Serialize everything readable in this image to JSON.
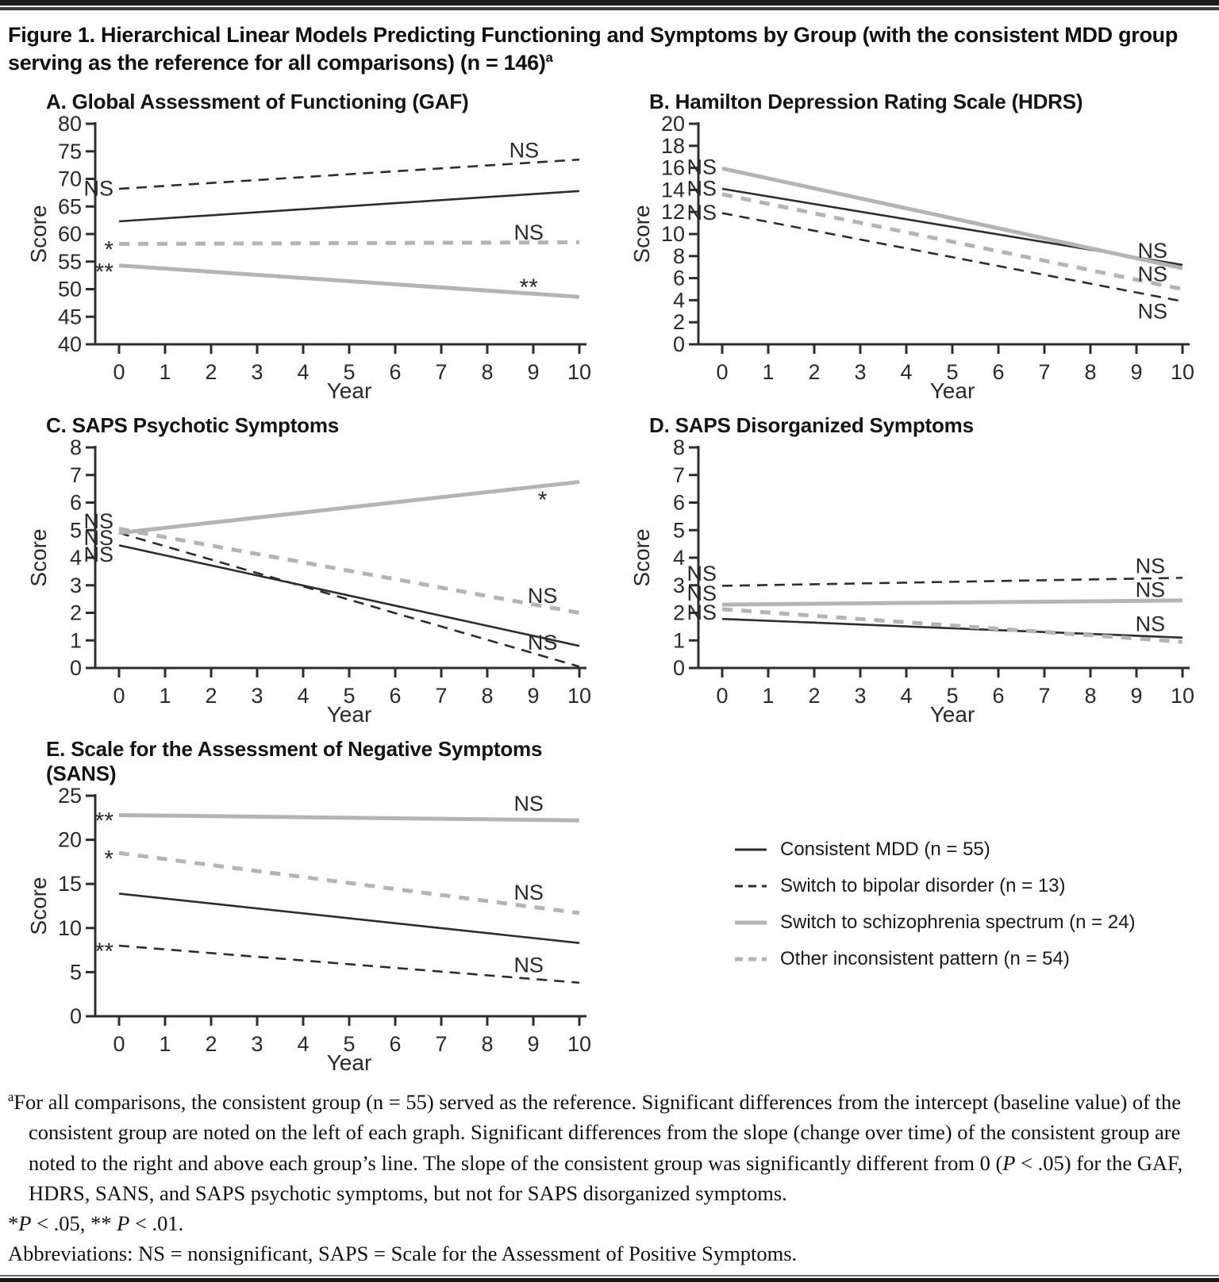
{
  "title": "Figure 1. Hierarchical Linear Models Predicting Functioning and Symptoms by Group (with the consistent MDD group serving as the reference for all comparisons) (n = 146)",
  "title_sup": "a",
  "colors": {
    "black": "#2e2d2c",
    "gray": "#b4b4b4",
    "axis": "#2e2d2c"
  },
  "legend": {
    "position": "right of panel E",
    "items": [
      {
        "label": "Consistent MDD (n = 55)",
        "color": "black",
        "dash": "solid"
      },
      {
        "label": "Switch to bipolar disorder (n = 13)",
        "color": "black",
        "dash": "dashed"
      },
      {
        "label": "Switch to schizophrenia spectrum (n = 24)",
        "color": "gray",
        "dash": "solid"
      },
      {
        "label": "Other inconsistent pattern (n = 54)",
        "color": "gray",
        "dash": "dashed"
      }
    ]
  },
  "chart_data": [
    {
      "id": "gaf",
      "type": "line",
      "title": "A. Global Assessment of Functioning (GAF)",
      "xlabel": "Year",
      "ylabel": "Score",
      "xlim": [
        0,
        10
      ],
      "xticks": [
        0,
        1,
        2,
        3,
        4,
        5,
        6,
        7,
        8,
        9,
        10
      ],
      "ylim": [
        40,
        80
      ],
      "yticks": [
        40,
        45,
        50,
        55,
        60,
        65,
        70,
        75,
        80
      ],
      "grid": false,
      "series": [
        {
          "name": "Consistent MDD",
          "color": "black",
          "dash": "solid",
          "x": [
            0,
            10
          ],
          "y": [
            62.3,
            67.8
          ]
        },
        {
          "name": "Switch to bipolar disorder",
          "color": "black",
          "dash": "dashed",
          "x": [
            0,
            10
          ],
          "y": [
            68.2,
            73.5
          ]
        },
        {
          "name": "Other inconsistent pattern",
          "color": "gray",
          "dash": "dashed",
          "x": [
            0,
            10
          ],
          "y": [
            58.2,
            58.5
          ]
        },
        {
          "name": "Switch to schizophrenia spectrum",
          "color": "gray",
          "dash": "solid",
          "x": [
            0,
            10
          ],
          "y": [
            54.3,
            48.6
          ]
        }
      ],
      "labels": [
        {
          "text": "NS",
          "side": "left",
          "y": 68.4
        },
        {
          "text": "*",
          "side": "left",
          "y": 58.2
        },
        {
          "text": "**",
          "side": "left",
          "y": 54.2
        },
        {
          "text": "NS",
          "side": "right",
          "x": 8.8,
          "y": 75.3
        },
        {
          "text": "NS",
          "side": "right",
          "x": 8.9,
          "y": 60.4
        },
        {
          "text": "**",
          "side": "right",
          "x": 8.9,
          "y": 51.4
        }
      ]
    },
    {
      "id": "hdrs",
      "type": "line",
      "title": "B. Hamilton Depression Rating Scale (HDRS)",
      "xlabel": "Year",
      "ylabel": "Score",
      "xlim": [
        0,
        10
      ],
      "xticks": [
        0,
        1,
        2,
        3,
        4,
        5,
        6,
        7,
        8,
        9,
        10
      ],
      "ylim": [
        0,
        20
      ],
      "yticks": [
        0,
        2,
        4,
        6,
        8,
        10,
        12,
        14,
        16,
        18,
        20
      ],
      "grid": false,
      "series": [
        {
          "name": "Consistent MDD",
          "color": "black",
          "dash": "solid",
          "x": [
            0,
            10
          ],
          "y": [
            14.1,
            7.2
          ]
        },
        {
          "name": "Switch to bipolar disorder",
          "color": "black",
          "dash": "dashed",
          "x": [
            0,
            10
          ],
          "y": [
            11.9,
            3.9
          ]
        },
        {
          "name": "Other inconsistent pattern",
          "color": "gray",
          "dash": "dashed",
          "x": [
            0,
            10
          ],
          "y": [
            13.6,
            5.0
          ]
        },
        {
          "name": "Switch to schizophrenia spectrum",
          "color": "gray",
          "dash": "solid",
          "x": [
            0,
            10
          ],
          "y": [
            15.95,
            6.9
          ]
        }
      ],
      "labels": [
        {
          "text": "NS",
          "side": "left",
          "y": 16.15
        },
        {
          "text": "NS",
          "side": "left",
          "y": 14.2
        },
        {
          "text": "NS",
          "side": "left",
          "y": 12.0
        },
        {
          "text": "NS",
          "side": "right",
          "x": 9.35,
          "y": 8.55
        },
        {
          "text": "NS",
          "side": "right",
          "x": 9.35,
          "y": 6.45
        },
        {
          "text": "NS",
          "side": "right",
          "x": 9.35,
          "y": 3.05
        }
      ]
    },
    {
      "id": "saps-psychotic",
      "type": "line",
      "title": "C. SAPS Psychotic Symptoms",
      "xlabel": "Year",
      "ylabel": "Score",
      "xlim": [
        0,
        10
      ],
      "xticks": [
        0,
        1,
        2,
        3,
        4,
        5,
        6,
        7,
        8,
        9,
        10
      ],
      "ylim": [
        0,
        8
      ],
      "yticks": [
        0,
        1,
        2,
        3,
        4,
        5,
        6,
        7,
        8
      ],
      "grid": false,
      "series": [
        {
          "name": "Consistent MDD",
          "color": "black",
          "dash": "solid",
          "x": [
            0,
            10
          ],
          "y": [
            4.45,
            0.8
          ]
        },
        {
          "name": "Switch to bipolar disorder",
          "color": "black",
          "dash": "dashed",
          "x": [
            0,
            10
          ],
          "y": [
            4.9,
            0.05
          ]
        },
        {
          "name": "Other inconsistent pattern",
          "color": "gray",
          "dash": "dashed",
          "x": [
            0,
            10
          ],
          "y": [
            5.05,
            2.0
          ]
        },
        {
          "name": "Switch to schizophrenia spectrum",
          "color": "gray",
          "dash": "solid",
          "x": [
            0,
            10
          ],
          "y": [
            4.9,
            6.75
          ]
        }
      ],
      "labels": [
        {
          "text": "NS",
          "side": "left",
          "y": 5.35
        },
        {
          "text": "NS",
          "side": "left",
          "y": 4.75
        },
        {
          "text": "NS",
          "side": "left",
          "y": 4.15
        },
        {
          "text": "*",
          "side": "right",
          "x": 9.2,
          "y": 6.3
        },
        {
          "text": "NS",
          "side": "right",
          "x": 9.2,
          "y": 2.65
        },
        {
          "text": "NS",
          "side": "right",
          "x": 9.2,
          "y": 0.95
        }
      ]
    },
    {
      "id": "saps-disorganized",
      "type": "line",
      "title": "D. SAPS Disorganized Symptoms",
      "xlabel": "Year",
      "ylabel": "Score",
      "xlim": [
        0,
        10
      ],
      "xticks": [
        0,
        1,
        2,
        3,
        4,
        5,
        6,
        7,
        8,
        9,
        10
      ],
      "ylim": [
        0,
        8
      ],
      "yticks": [
        0,
        1,
        2,
        3,
        4,
        5,
        6,
        7,
        8
      ],
      "grid": false,
      "series": [
        {
          "name": "Consistent MDD",
          "color": "black",
          "dash": "solid",
          "x": [
            0,
            10
          ],
          "y": [
            1.78,
            1.1
          ]
        },
        {
          "name": "Switch to bipolar disorder",
          "color": "black",
          "dash": "dashed",
          "x": [
            0,
            10
          ],
          "y": [
            2.98,
            3.27
          ]
        },
        {
          "name": "Other inconsistent pattern",
          "color": "gray",
          "dash": "dashed",
          "x": [
            0,
            10
          ],
          "y": [
            2.13,
            0.95
          ]
        },
        {
          "name": "Switch to schizophrenia spectrum",
          "color": "gray",
          "dash": "solid",
          "x": [
            0,
            10
          ],
          "y": [
            2.3,
            2.45
          ]
        }
      ],
      "labels": [
        {
          "text": "NS",
          "side": "left",
          "y": 3.45
        },
        {
          "text": "NS",
          "side": "left",
          "y": 2.73
        },
        {
          "text": "NS",
          "side": "left",
          "y": 2.05
        },
        {
          "text": "NS",
          "side": "right",
          "x": 9.3,
          "y": 3.72
        },
        {
          "text": "NS",
          "side": "right",
          "x": 9.3,
          "y": 2.87
        },
        {
          "text": "NS",
          "side": "right",
          "x": 9.3,
          "y": 1.62
        }
      ]
    },
    {
      "id": "sans",
      "type": "line",
      "title": "E. Scale for the Assessment of Negative Symptoms (SANS)",
      "xlabel": "Year",
      "ylabel": "Score",
      "xlim": [
        0,
        10
      ],
      "xticks": [
        0,
        1,
        2,
        3,
        4,
        5,
        6,
        7,
        8,
        9,
        10
      ],
      "ylim": [
        0,
        25
      ],
      "yticks": [
        0,
        5,
        10,
        15,
        20,
        25
      ],
      "grid": false,
      "series": [
        {
          "name": "Consistent MDD",
          "color": "black",
          "dash": "solid",
          "x": [
            0,
            10
          ],
          "y": [
            13.9,
            8.3
          ]
        },
        {
          "name": "Switch to bipolar disorder",
          "color": "black",
          "dash": "dashed",
          "x": [
            0,
            10
          ],
          "y": [
            8.0,
            3.8
          ]
        },
        {
          "name": "Other inconsistent pattern",
          "color": "gray",
          "dash": "dashed",
          "x": [
            0,
            10
          ],
          "y": [
            18.5,
            11.7
          ]
        },
        {
          "name": "Switch to schizophrenia spectrum",
          "color": "gray",
          "dash": "solid",
          "x": [
            0,
            10
          ],
          "y": [
            22.8,
            22.2
          ]
        }
      ],
      "labels": [
        {
          "text": "**",
          "side": "left",
          "y": 22.8
        },
        {
          "text": "*",
          "side": "left",
          "y": 18.5
        },
        {
          "text": "**",
          "side": "left",
          "y": 8.0
        },
        {
          "text": "NS",
          "side": "right",
          "x": 8.9,
          "y": 24.2
        },
        {
          "text": "NS",
          "side": "right",
          "x": 8.9,
          "y": 14.1
        },
        {
          "text": "NS",
          "side": "right",
          "x": 8.9,
          "y": 5.9
        }
      ]
    }
  ],
  "footnote": {
    "note_a": [
      {
        "t": "a",
        "sup": true
      },
      {
        "t": "For all comparisons, the consistent group (n = 55) served as the reference. Significant differences from the intercept (baseline value) of the consistent group are noted on the left of each graph. Significant differences from the slope (change over time) of the consistent group are noted to the right and above each group’s line. The slope of the consistent group was significantly different from 0 ("
      },
      {
        "t": "P",
        "i": true
      },
      {
        "t": " < .05) for the GAF, HDRS, SANS, and SAPS psychotic symptoms, but not for SAPS disorganized symptoms."
      }
    ],
    "sig": [
      {
        "t": "*"
      },
      {
        "t": "P",
        "i": true
      },
      {
        "t": " < .05, ** "
      },
      {
        "t": "P",
        "i": true
      },
      {
        "t": " < .01."
      }
    ],
    "abbrev": [
      {
        "t": "Abbreviations: NS = nonsignificant, SAPS = Scale for the Assessment of Positive Symptoms."
      }
    ]
  }
}
